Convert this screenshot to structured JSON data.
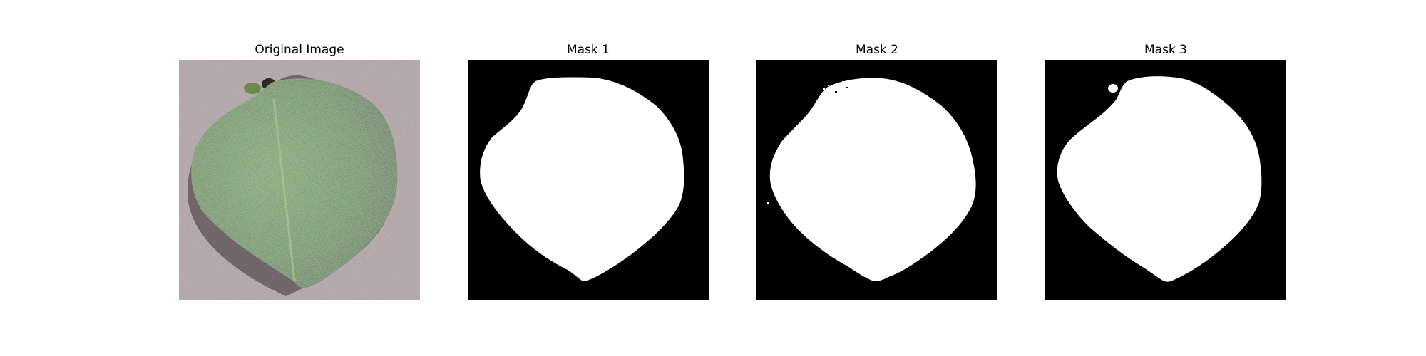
{
  "figure": {
    "panels": [
      {
        "title": "Original Image"
      },
      {
        "title": "Mask 1"
      },
      {
        "title": "Mask 2"
      },
      {
        "title": "Mask 3"
      }
    ]
  },
  "colors": {
    "background_surface": "#b3a4a8",
    "leaf_dark": "#2d5a22",
    "leaf_mid": "#3f7a30",
    "leaf_light": "#6f9a5a",
    "vein": "#9fb88a",
    "mask_background": "#000000",
    "mask_foreground": "#ffffff"
  }
}
